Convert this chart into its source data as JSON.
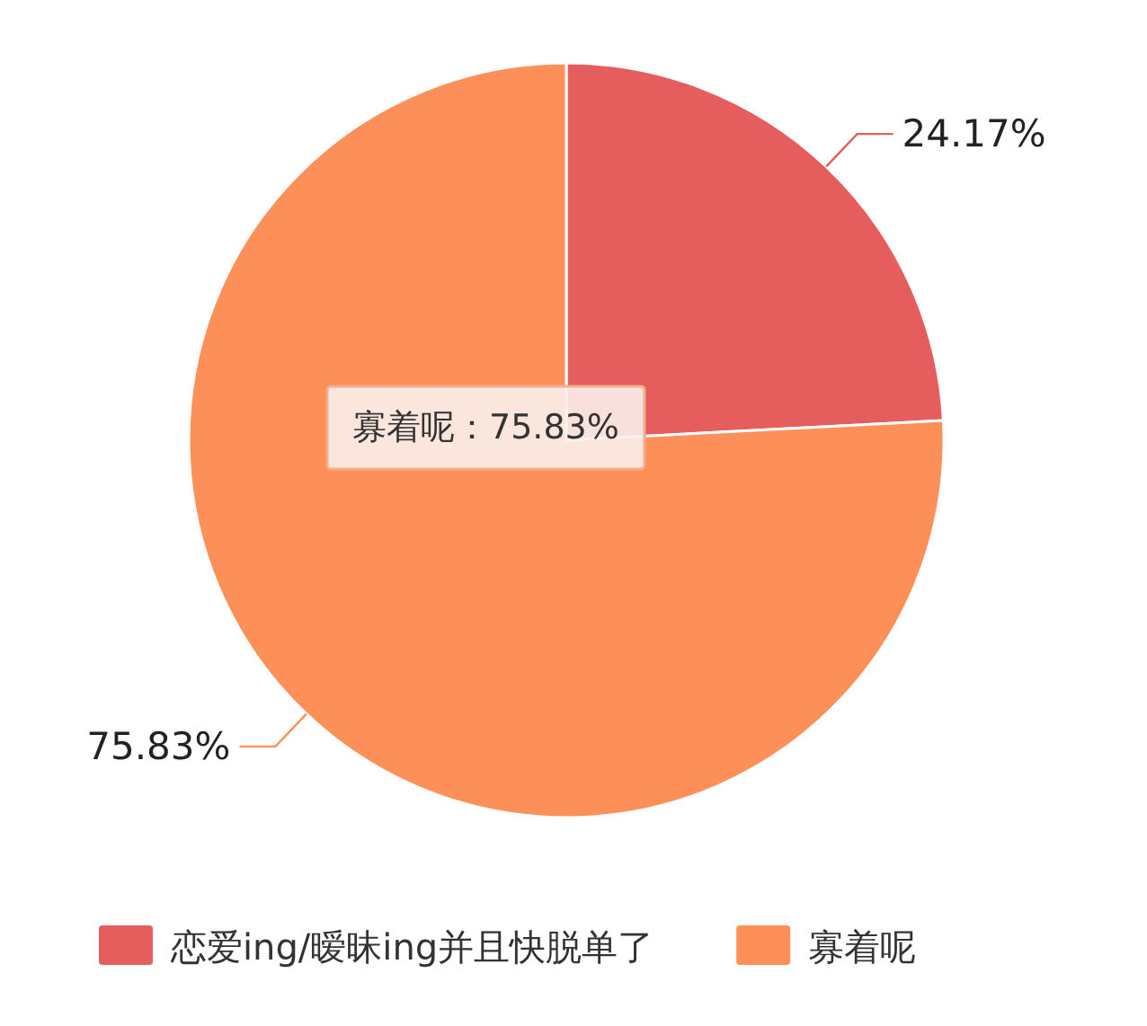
{
  "chart_data": {
    "type": "pie",
    "categories": [
      "恋爱ing/暧昧ing并且快脱单了",
      "寡着呢"
    ],
    "values": [
      24.17,
      75.83
    ],
    "colors": [
      "#e65d5d",
      "#fd8f59"
    ],
    "value_labels": [
      "24.17%",
      "75.83%"
    ],
    "legend": "bottom",
    "annotations": [
      "寡着呢：75.83%"
    ]
  }
}
